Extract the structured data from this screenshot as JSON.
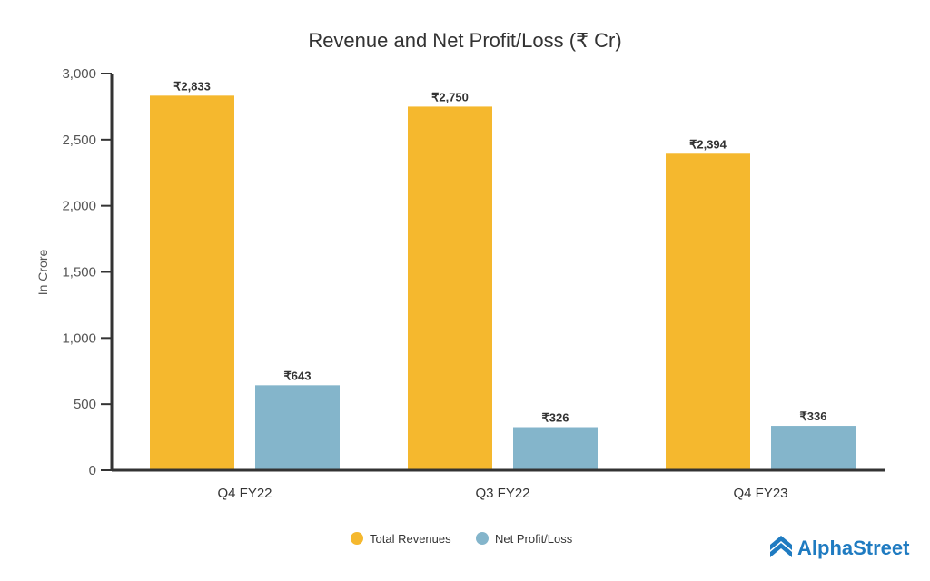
{
  "chart_data": {
    "type": "bar",
    "title": "Revenue and Net Profit/Loss (₹ Cr)",
    "xlabel": "",
    "ylabel": "In Crore",
    "ylim": [
      0,
      3000
    ],
    "yticks": [
      0,
      500,
      1000,
      1500,
      2000,
      2500,
      3000
    ],
    "ytick_labels": [
      "0",
      "500",
      "1,000",
      "1,500",
      "2,000",
      "2,500",
      "3,000"
    ],
    "categories": [
      "Q4 FY22",
      "Q3 FY22",
      "Q4 FY23"
    ],
    "series": [
      {
        "name": "Total Revenues",
        "color": "#F5B82E",
        "values": [
          2833,
          2750,
          2394
        ],
        "labels": [
          "₹2,833",
          "₹2,750",
          "₹2,394"
        ]
      },
      {
        "name": "Net Profit/Loss",
        "color": "#84B5CB",
        "values": [
          643,
          326,
          336
        ],
        "labels": [
          "₹643",
          "₹326",
          "₹336"
        ]
      }
    ],
    "legend_position": "bottom-center",
    "grid": false
  },
  "brand": {
    "name": "AlphaStreet",
    "color": "#1f7bc1"
  }
}
